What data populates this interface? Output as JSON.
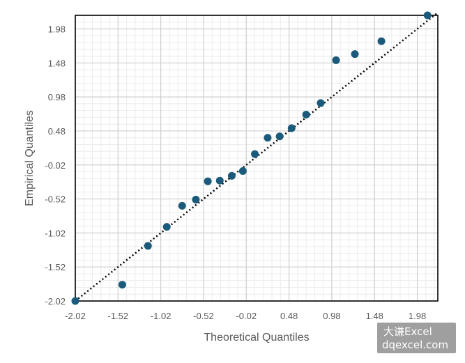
{
  "chart_data": {
    "type": "scatter",
    "xlabel": "Theoretical Quantiles",
    "ylabel": "Empirical Quantiles",
    "x_ticks": [
      "-2.02",
      "-1.52",
      "-1.02",
      "-0.52",
      "-0.02",
      "0.48",
      "0.98",
      "1.48",
      "1.98"
    ],
    "y_ticks": [
      "-2.02",
      "-1.52",
      "-1.02",
      "-0.52",
      "-0.02",
      "0.48",
      "0.98",
      "1.48",
      "1.98"
    ],
    "xlim": [
      -2.02,
      2.22
    ],
    "ylim": [
      -2.02,
      2.18
    ],
    "grid": true,
    "reference_line": {
      "style": "dotted",
      "color": "#000000",
      "from": [
        -2.02,
        -2.02
      ],
      "to": [
        2.22,
        2.22
      ]
    },
    "marker_color": "#1b5a7a",
    "points": [
      {
        "x": -2.02,
        "y": -2.02
      },
      {
        "x": -1.47,
        "y": -1.78
      },
      {
        "x": -1.17,
        "y": -1.21
      },
      {
        "x": -0.95,
        "y": -0.93
      },
      {
        "x": -0.77,
        "y": -0.62
      },
      {
        "x": -0.61,
        "y": -0.53
      },
      {
        "x": -0.47,
        "y": -0.26
      },
      {
        "x": -0.33,
        "y": -0.25
      },
      {
        "x": -0.19,
        "y": -0.18
      },
      {
        "x": -0.06,
        "y": -0.11
      },
      {
        "x": 0.08,
        "y": 0.14
      },
      {
        "x": 0.23,
        "y": 0.38
      },
      {
        "x": 0.37,
        "y": 0.4
      },
      {
        "x": 0.51,
        "y": 0.52
      },
      {
        "x": 0.68,
        "y": 0.72
      },
      {
        "x": 0.85,
        "y": 0.89
      },
      {
        "x": 1.03,
        "y": 1.52
      },
      {
        "x": 1.25,
        "y": 1.61
      },
      {
        "x": 1.56,
        "y": 1.8
      },
      {
        "x": 2.1,
        "y": 2.18
      }
    ]
  },
  "watermark": {
    "line1": "大谦Excel",
    "line2": "dqexcel.com"
  }
}
